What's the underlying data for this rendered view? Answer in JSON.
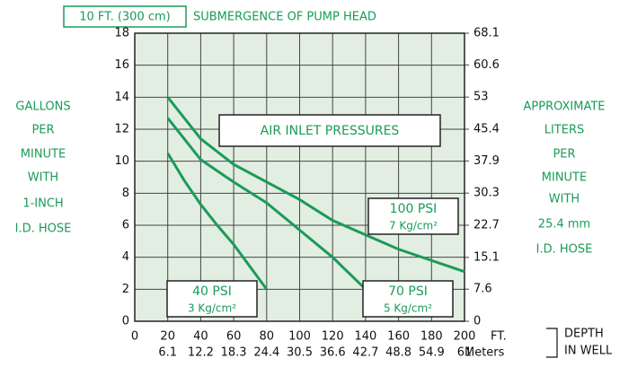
{
  "chart_data": {
    "type": "line",
    "title_box": "10 FT. (300 cm)",
    "title": "SUBMERGENCE OF PUMP HEAD",
    "annotation": "AIR INLET PRESSURES",
    "ylabel_lines": [
      "GALLONS",
      "PER",
      "MINUTE",
      "WITH",
      "1-INCH",
      "I.D. HOSE"
    ],
    "y2label_lines": [
      "APPROXIMATE",
      "LITERS",
      "PER",
      "MINUTE",
      "WITH",
      "25.4 mm",
      "I.D. HOSE"
    ],
    "xunit": "FT.",
    "x2unit": "Meters",
    "xlabel_lines": [
      "DEPTH",
      "IN WELL"
    ],
    "xlim": [
      0,
      200
    ],
    "xticks": [
      0,
      20,
      40,
      60,
      80,
      100,
      120,
      140,
      160,
      180,
      200
    ],
    "x2lim": [
      0,
      61
    ],
    "x2ticks": [
      6.1,
      12.2,
      18.3,
      24.4,
      30.5,
      36.6,
      42.7,
      48.8,
      54.9,
      61
    ],
    "ylim": [
      0,
      18
    ],
    "yticks": [
      0,
      2,
      4,
      6,
      8,
      10,
      12,
      14,
      16,
      18
    ],
    "y2lim": [
      0,
      68.1
    ],
    "y2ticks": [
      0,
      7.6,
      15.1,
      22.7,
      30.3,
      37.9,
      45.4,
      53,
      60.6,
      68.1
    ],
    "grid": true,
    "series": [
      {
        "name": "40 PSI",
        "metric": "3 Kg/cm²",
        "color": "#1a9b57",
        "x": [
          20,
          30,
          40,
          50,
          60,
          70,
          80
        ],
        "values": [
          10.5,
          8.8,
          7.3,
          6.0,
          4.8,
          3.4,
          2
        ]
      },
      {
        "name": "70 PSI",
        "metric": "5 Kg/cm²",
        "color": "#1a9b57",
        "x": [
          20,
          40,
          60,
          80,
          100,
          120,
          140
        ],
        "values": [
          12.7,
          10.1,
          8.7,
          7.4,
          5.7,
          4.0,
          2
        ]
      },
      {
        "name": "100 PSI",
        "metric": "7 Kg/cm²",
        "color": "#1a9b57",
        "x": [
          20,
          40,
          60,
          80,
          100,
          120,
          140,
          160,
          180,
          200
        ],
        "values": [
          14,
          11.4,
          9.8,
          8.7,
          7.6,
          6.3,
          5.4,
          4.5,
          3.8,
          3.1
        ]
      }
    ]
  }
}
